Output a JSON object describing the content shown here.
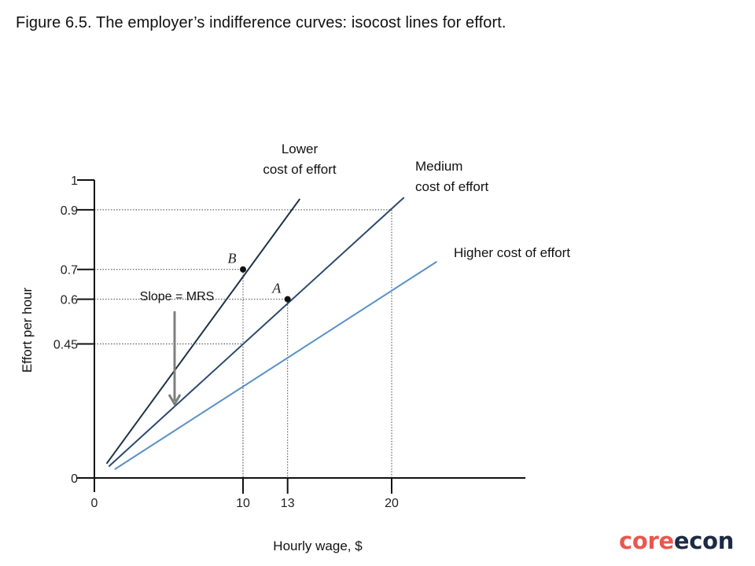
{
  "figure_title": "Figure 6.5. The employer’s indifference curves: isocost lines for effort.",
  "logo": {
    "part1": "core",
    "part2": "econ"
  },
  "colors": {
    "lower": "#1f3246",
    "medium": "#2b4a6d",
    "higher": "#5a91c6",
    "arrow": "#7f7f7f",
    "guides": "#444444"
  },
  "chart_data": {
    "type": "line",
    "xlabel": "Hourly wage, $",
    "ylabel": "Effort per hour",
    "xlim": [
      0,
      29
    ],
    "ylim": [
      0,
      1
    ],
    "x_ticks": [
      {
        "value": 0,
        "label": "0"
      },
      {
        "value": 10,
        "label": "10"
      },
      {
        "value": 13,
        "label": "13"
      },
      {
        "value": 20,
        "label": "20"
      }
    ],
    "y_ticks": [
      {
        "value": 0,
        "label": "0"
      },
      {
        "value": 0.45,
        "label": "0.45"
      },
      {
        "value": 0.6,
        "label": "0.6"
      },
      {
        "value": 0.7,
        "label": "0.7"
      },
      {
        "value": 0.9,
        "label": "0.9"
      },
      {
        "value": 1,
        "label": "1"
      }
    ],
    "series": [
      {
        "name": "Lower cost of effort",
        "label_lines": [
          "Lower",
          "cost of effort"
        ],
        "color": "#1f3246",
        "x": [
          0.85,
          13.8
        ],
        "y": [
          0.05,
          0.935
        ]
      },
      {
        "name": "Medium cost of effort",
        "label_lines": [
          "Medium",
          "cost of effort"
        ],
        "color": "#2b4a6d",
        "x": [
          1.0,
          20.8
        ],
        "y": [
          0.04,
          0.94
        ]
      },
      {
        "name": "Higher cost of effort",
        "label_lines": [
          "Higher cost of effort"
        ],
        "color": "#5a91c6",
        "x": [
          1.4,
          23.0
        ],
        "y": [
          0.03,
          0.725
        ]
      }
    ],
    "points": [
      {
        "label": "B",
        "x": 10,
        "y": 0.7
      },
      {
        "label": "A",
        "x": 13,
        "y": 0.6
      }
    ],
    "guides": [
      {
        "x": 10,
        "y": 0.7
      },
      {
        "x": 13,
        "y": 0.6
      },
      {
        "x": 20,
        "y": 0.9
      },
      {
        "x": 10,
        "y": 0.45
      }
    ],
    "annotation": {
      "text": "Slope = MRS"
    },
    "grid": false,
    "legend": "inline labels"
  }
}
